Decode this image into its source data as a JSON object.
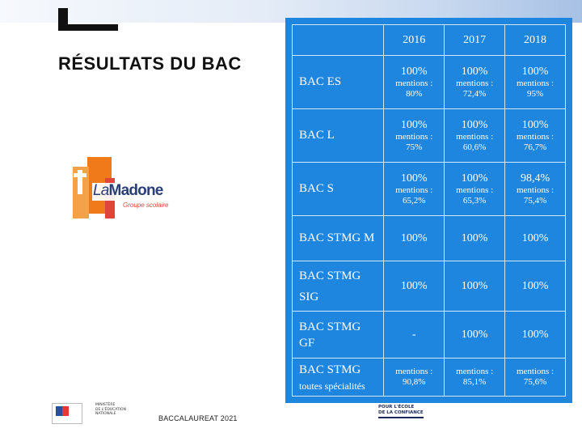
{
  "header": {
    "title": "RÉSULTATS DU BAC"
  },
  "logo": {
    "brand_prefix": "La",
    "brand_name": "Madone",
    "tagline": "Groupe scolaire"
  },
  "table": {
    "years": [
      "2016",
      "2017",
      "2018"
    ],
    "rows": [
      {
        "label": "BAC ES",
        "cells": [
          {
            "pct": "100%",
            "mentions_label": "mentions :",
            "mentions": "80%"
          },
          {
            "pct": "100%",
            "mentions_label": "mentions :",
            "mentions": "72,4%"
          },
          {
            "pct": "100%",
            "mentions_label": "mentions :",
            "mentions": "95%"
          }
        ]
      },
      {
        "label": "BAC L",
        "cells": [
          {
            "pct": "100%",
            "mentions_label": "mentions :",
            "mentions": "75%"
          },
          {
            "pct": "100%",
            "mentions_label": "mentions :",
            "mentions": "60,6%"
          },
          {
            "pct": "100%",
            "mentions_label": "mentions :",
            "mentions": "76,7%"
          }
        ]
      },
      {
        "label": "BAC S",
        "cells": [
          {
            "pct": "100%",
            "mentions_label": "mentions :",
            "mentions": "65,2%"
          },
          {
            "pct": "100%",
            "mentions_label": "mentions :",
            "mentions": "65,3%"
          },
          {
            "pct": "98,4%",
            "mentions_label": "mentions :",
            "mentions": "75,4%"
          }
        ]
      },
      {
        "label": "BAC STMG M",
        "cells": [
          "100%",
          "100%",
          "100%"
        ]
      },
      {
        "label_line1": "BAC STMG",
        "label_line2": "SIG",
        "cells": [
          "100%",
          "100%",
          "100%"
        ]
      },
      {
        "label_line1": "BAC STMG",
        "label_line2": "GF",
        "cells": [
          "-",
          "100%",
          "100%"
        ]
      },
      {
        "label_line1": "BAC STMG",
        "label_sub": "toutes spécialités",
        "cells": [
          {
            "mentions_label": "mentions :",
            "mentions": "90,8%"
          },
          {
            "mentions_label": "mentions :",
            "mentions": "85,1%"
          },
          {
            "mentions_label": "mentions :",
            "mentions": "75,6%"
          }
        ]
      }
    ]
  },
  "footer": {
    "text": "BACCALAUREAT 2021",
    "ministry_lines": [
      "MINISTÈRE",
      "DE L'ÉDUCATION",
      "NATIONALE"
    ],
    "slogan_line1": "POUR L'ÉCOLE",
    "slogan_line2": "DE LA CONFIANCE"
  },
  "colors": {
    "table_background": "#1e86de",
    "table_text": "#ffffff",
    "logo_orange": "#f07a1a",
    "logo_red": "#e0453a",
    "logo_blue": "#2a3f77"
  }
}
